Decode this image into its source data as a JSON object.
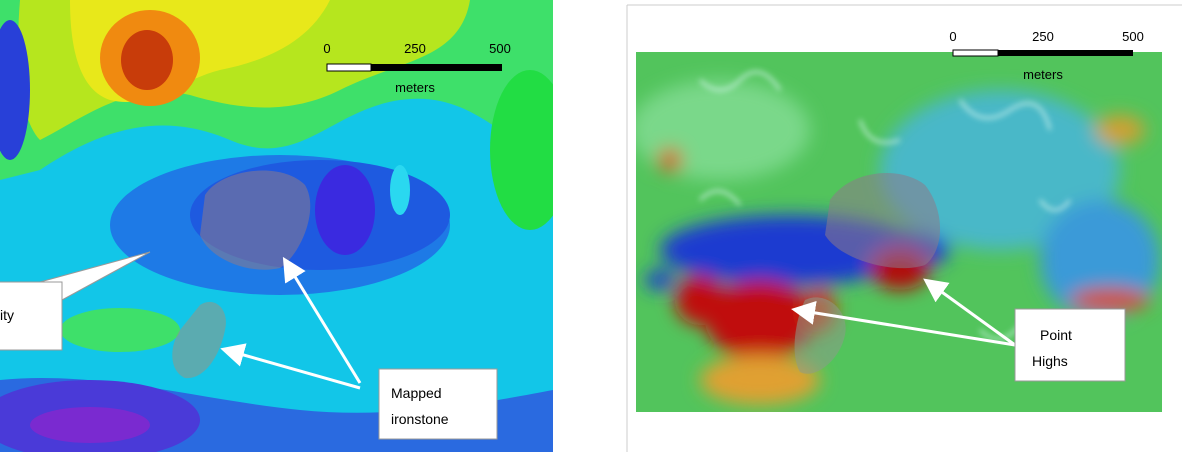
{
  "left_map": {
    "scale_bar": {
      "ticks": [
        "0",
        "250",
        "500"
      ],
      "unit": "meters"
    },
    "callouts": [
      {
        "lines": [
          "ity"
        ]
      },
      {
        "lines": [
          "Mapped",
          "ironstone"
        ]
      }
    ]
  },
  "right_map": {
    "scale_bar": {
      "ticks": [
        "0",
        "250",
        "500"
      ],
      "unit": "meters"
    },
    "callouts": [
      {
        "lines": [
          "Point",
          "Highs"
        ]
      }
    ]
  }
}
